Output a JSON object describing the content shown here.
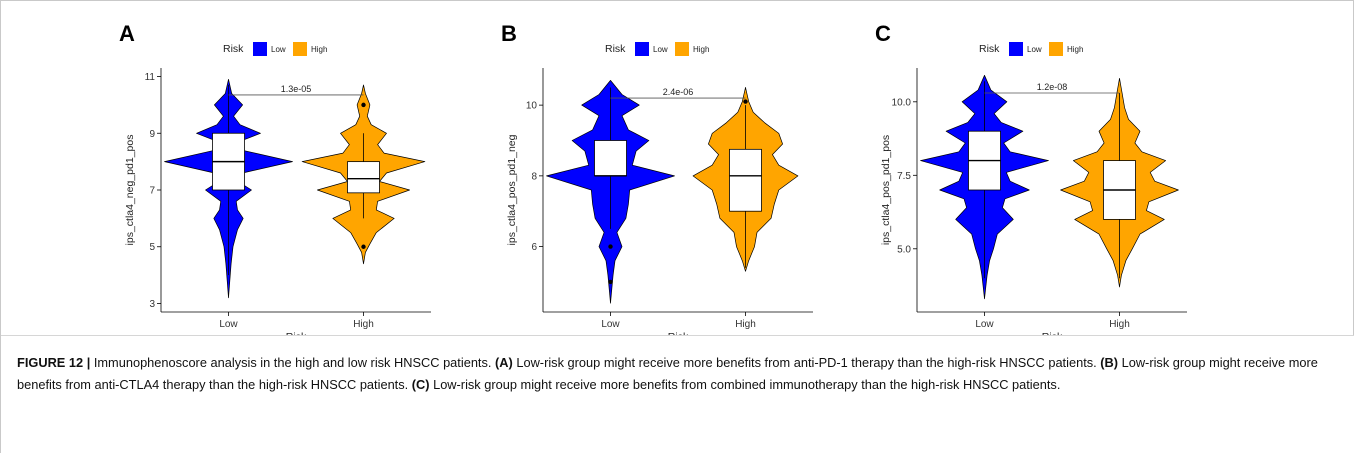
{
  "chart_data": [
    {
      "type": "violin",
      "panel": "A",
      "categories": [
        "Low",
        "High"
      ],
      "xlabel": "Risk",
      "ylabel": "ips_ctla4_neg_pd1_pos",
      "ylim": [
        2.7,
        11.3
      ],
      "yticks": [
        3,
        5,
        7,
        9,
        11
      ],
      "legend": {
        "title": "Risk",
        "entries": [
          "Low",
          "High"
        ],
        "position": "top"
      },
      "pvalue": "1.3e-05",
      "pvalue_y": 10.35,
      "colors": [
        "#0000ff",
        "#ffa500"
      ],
      "series": [
        {
          "name": "Low",
          "box": {
            "q1": 7,
            "median": 8,
            "q3": 9,
            "whisker_low": 4,
            "whisker_high": 10.7
          },
          "outliers": [],
          "density": [
            [
              3.2,
              0
            ],
            [
              3.8,
              0.02
            ],
            [
              4.4,
              0.04
            ],
            [
              5.0,
              0.07
            ],
            [
              5.6,
              0.14
            ],
            [
              6.0,
              0.23
            ],
            [
              6.3,
              0.14
            ],
            [
              6.6,
              0.12
            ],
            [
              7.0,
              0.36
            ],
            [
              7.3,
              0.15
            ],
            [
              7.6,
              0.22
            ],
            [
              8.0,
              1.0
            ],
            [
              8.4,
              0.22
            ],
            [
              8.7,
              0.16
            ],
            [
              9.0,
              0.5
            ],
            [
              9.3,
              0.18
            ],
            [
              9.6,
              0.08
            ],
            [
              10.0,
              0.22
            ],
            [
              10.4,
              0.05
            ],
            [
              10.9,
              0
            ]
          ]
        },
        {
          "name": "High",
          "box": {
            "q1": 6.9,
            "median": 7.4,
            "q3": 8,
            "whisker_low": 6,
            "whisker_high": 9
          },
          "outliers": [
            5,
            10
          ],
          "density": [
            [
              4.4,
              0
            ],
            [
              4.8,
              0.03
            ],
            [
              5.1,
              0.1
            ],
            [
              5.5,
              0.2
            ],
            [
              6.0,
              0.48
            ],
            [
              6.3,
              0.2
            ],
            [
              6.6,
              0.22
            ],
            [
              7.0,
              0.72
            ],
            [
              7.3,
              0.25
            ],
            [
              7.6,
              0.36
            ],
            [
              8.0,
              0.96
            ],
            [
              8.3,
              0.32
            ],
            [
              8.6,
              0.22
            ],
            [
              9.0,
              0.36
            ],
            [
              9.3,
              0.12
            ],
            [
              9.6,
              0.06
            ],
            [
              10.0,
              0.1
            ],
            [
              10.4,
              0.03
            ],
            [
              10.7,
              0
            ]
          ]
        }
      ]
    },
    {
      "type": "violin",
      "panel": "B",
      "categories": [
        "Low",
        "High"
      ],
      "xlabel": "Risk",
      "ylabel": "ips_ctla4_pos_pd1_neg",
      "ylim": [
        4.15,
        11.05
      ],
      "yticks": [
        6,
        8,
        10
      ],
      "legend": {
        "title": "Risk",
        "entries": [
          "Low",
          "High"
        ],
        "position": "top"
      },
      "pvalue": "2.4e-06",
      "pvalue_y": 10.2,
      "colors": [
        "#0000ff",
        "#ffa500"
      ],
      "series": [
        {
          "name": "Low",
          "box": {
            "q1": 8,
            "median": 8,
            "q3": 9,
            "whisker_low": 6.5,
            "whisker_high": 10.5
          },
          "outliers": [
            6,
            5
          ],
          "density": [
            [
              4.4,
              0
            ],
            [
              4.8,
              0.02
            ],
            [
              5.2,
              0.04
            ],
            [
              5.6,
              0.07
            ],
            [
              6.0,
              0.18
            ],
            [
              6.4,
              0.1
            ],
            [
              6.8,
              0.24
            ],
            [
              7.2,
              0.28
            ],
            [
              7.6,
              0.3
            ],
            [
              8.0,
              1.0
            ],
            [
              8.3,
              0.34
            ],
            [
              8.7,
              0.4
            ],
            [
              9.0,
              0.6
            ],
            [
              9.3,
              0.28
            ],
            [
              9.7,
              0.18
            ],
            [
              10.0,
              0.45
            ],
            [
              10.3,
              0.18
            ],
            [
              10.7,
              0
            ]
          ]
        },
        {
          "name": "High",
          "box": {
            "q1": 7,
            "median": 8,
            "q3": 8.75,
            "whisker_low": 5.4,
            "whisker_high": 10
          },
          "outliers": [
            10.1
          ],
          "density": [
            [
              5.3,
              0
            ],
            [
              5.6,
              0.05
            ],
            [
              6.0,
              0.14
            ],
            [
              6.4,
              0.18
            ],
            [
              6.8,
              0.4
            ],
            [
              7.2,
              0.45
            ],
            [
              7.6,
              0.52
            ],
            [
              8.0,
              0.82
            ],
            [
              8.3,
              0.52
            ],
            [
              8.6,
              0.42
            ],
            [
              8.9,
              0.58
            ],
            [
              9.2,
              0.52
            ],
            [
              9.5,
              0.3
            ],
            [
              9.8,
              0.12
            ],
            [
              10.1,
              0.05
            ],
            [
              10.5,
              0
            ]
          ]
        }
      ]
    },
    {
      "type": "violin",
      "panel": "C",
      "categories": [
        "Low",
        "High"
      ],
      "xlabel": "Risk",
      "ylabel": "ips_ctla4_pos_pd1_pos",
      "ylim": [
        2.85,
        11.15
      ],
      "yticks": [
        5.0,
        7.5,
        10.0
      ],
      "ytick_labels": [
        "5.0",
        "7.5",
        "10.0"
      ],
      "legend": {
        "title": "Risk",
        "entries": [
          "Low",
          "High"
        ],
        "position": "top"
      },
      "pvalue": "1.2e-08",
      "pvalue_y": 10.3,
      "colors": [
        "#0000ff",
        "#ffa500"
      ],
      "series": [
        {
          "name": "Low",
          "box": {
            "q1": 7,
            "median": 8,
            "q3": 9,
            "whisker_low": 4,
            "whisker_high": 10.7
          },
          "outliers": [],
          "density": [
            [
              3.3,
              0
            ],
            [
              3.7,
              0.02
            ],
            [
              4.1,
              0.04
            ],
            [
              4.6,
              0.08
            ],
            [
              5.0,
              0.14
            ],
            [
              5.5,
              0.2
            ],
            [
              6.0,
              0.45
            ],
            [
              6.4,
              0.28
            ],
            [
              6.7,
              0.32
            ],
            [
              7.0,
              0.7
            ],
            [
              7.3,
              0.4
            ],
            [
              7.6,
              0.34
            ],
            [
              8.0,
              1.0
            ],
            [
              8.3,
              0.4
            ],
            [
              8.6,
              0.3
            ],
            [
              9.0,
              0.6
            ],
            [
              9.3,
              0.26
            ],
            [
              9.6,
              0.15
            ],
            [
              10.0,
              0.35
            ],
            [
              10.4,
              0.1
            ],
            [
              10.9,
              0
            ]
          ]
        },
        {
          "name": "High",
          "box": {
            "q1": 6,
            "median": 7,
            "q3": 8,
            "whisker_low": 4,
            "whisker_high": 10.3
          },
          "outliers": [],
          "density": [
            [
              3.7,
              0
            ],
            [
              4.1,
              0.03
            ],
            [
              4.6,
              0.1
            ],
            [
              5.0,
              0.2
            ],
            [
              5.5,
              0.32
            ],
            [
              6.0,
              0.7
            ],
            [
              6.3,
              0.42
            ],
            [
              6.6,
              0.46
            ],
            [
              7.0,
              0.92
            ],
            [
              7.3,
              0.55
            ],
            [
              7.6,
              0.48
            ],
            [
              8.0,
              0.72
            ],
            [
              8.3,
              0.35
            ],
            [
              8.6,
              0.24
            ],
            [
              9.0,
              0.32
            ],
            [
              9.4,
              0.14
            ],
            [
              9.8,
              0.08
            ],
            [
              10.3,
              0.04
            ],
            [
              10.8,
              0
            ]
          ]
        }
      ]
    }
  ],
  "caption": {
    "figure_label": "FIGURE 12 |",
    "main_text": " Immunophenoscore analysis in the high and low risk HNSCC patients. ",
    "parts": [
      {
        "label": "(A)",
        "text": " Low-risk group might receive more benefits from anti-PD-1 therapy than the high-risk HNSCC patients. "
      },
      {
        "label": "(B)",
        "text": " Low-risk group might receive more benefits from anti-CTLA4 therapy than the high-risk HNSCC patients. "
      },
      {
        "label": "(C)",
        "text": " Low-risk group might receive more benefits from combined immunotherapy than the high-risk HNSCC patients."
      }
    ]
  }
}
